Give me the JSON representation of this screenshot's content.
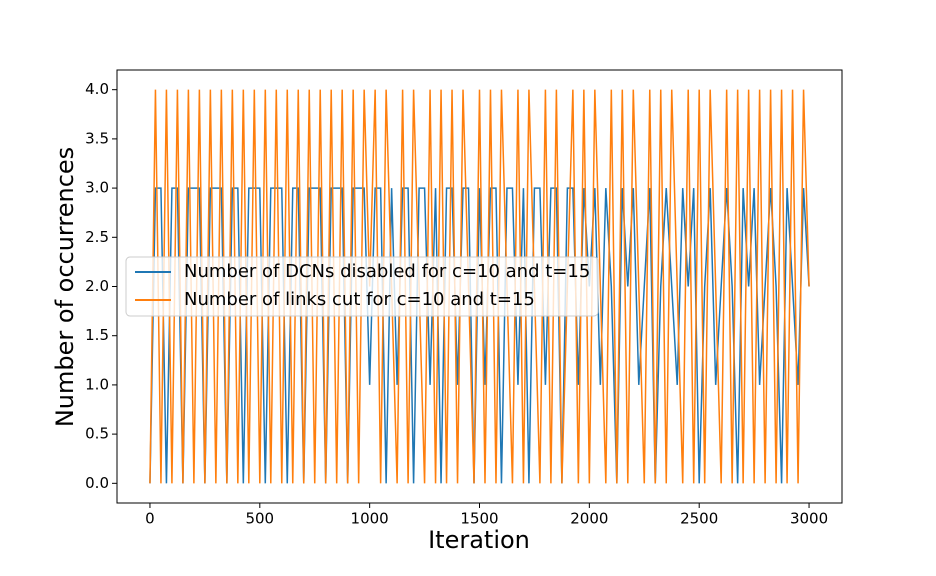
{
  "chart_data": {
    "type": "line",
    "x_label": "Iteration",
    "y_label": "Number of occurrences",
    "x": [
      0,
      25,
      50,
      75,
      100,
      125,
      150,
      175,
      200,
      225,
      250,
      275,
      300,
      325,
      350,
      375,
      400,
      425,
      450,
      475,
      500,
      525,
      550,
      575,
      600,
      625,
      650,
      675,
      700,
      725,
      750,
      775,
      800,
      825,
      850,
      875,
      900,
      925,
      950,
      975,
      1000,
      1025,
      1050,
      1075,
      1100,
      1125,
      1150,
      1175,
      1200,
      1225,
      1250,
      1275,
      1300,
      1325,
      1350,
      1375,
      1400,
      1425,
      1450,
      1475,
      1500,
      1525,
      1550,
      1575,
      1600,
      1625,
      1650,
      1675,
      1700,
      1725,
      1750,
      1775,
      1800,
      1825,
      1850,
      1875,
      1900,
      1925,
      1950,
      1975,
      2000,
      2025,
      2050,
      2075,
      2100,
      2125,
      2150,
      2175,
      2200,
      2225,
      2250,
      2275,
      2300,
      2325,
      2350,
      2375,
      2400,
      2425,
      2450,
      2475,
      2500,
      2525,
      2550,
      2575,
      2600,
      2625,
      2650,
      2675,
      2700,
      2725,
      2750,
      2775,
      2800,
      2825,
      2850,
      2875,
      2900,
      2925,
      2950,
      2975,
      3000
    ],
    "series": [
      {
        "name": "Number of DCNs disabled for c=10 and t=15",
        "color": "#1f77b4",
        "values": [
          0,
          3,
          3,
          0,
          3,
          3,
          0,
          3,
          3,
          3,
          0,
          3,
          3,
          3,
          0,
          3,
          3,
          0,
          3,
          3,
          3,
          0,
          3,
          3,
          3,
          0,
          3,
          3,
          0,
          3,
          3,
          3,
          0,
          3,
          3,
          3,
          0,
          3,
          3,
          3,
          1,
          3,
          3,
          0,
          3,
          1,
          3,
          3,
          0,
          3,
          3,
          1,
          3,
          0,
          3,
          3,
          1,
          3,
          3,
          0,
          3,
          1,
          3,
          3,
          0,
          3,
          3,
          1,
          3,
          0,
          3,
          3,
          1,
          3,
          3,
          0,
          3,
          3,
          1,
          3,
          2,
          3,
          1,
          3,
          2,
          0,
          3,
          2,
          3,
          1,
          2,
          3,
          0,
          2,
          3,
          2,
          1,
          3,
          2,
          3,
          0,
          2,
          3,
          1,
          2,
          3,
          2,
          0,
          3,
          2,
          3,
          1,
          2,
          3,
          2,
          0,
          3,
          2,
          1,
          3,
          2
        ]
      },
      {
        "name": "Number of links cut for c=10 and t=15",
        "color": "#ff7f0e",
        "values": [
          0,
          4,
          0,
          4,
          0,
          4,
          0,
          4,
          0,
          4,
          0,
          4,
          0,
          4,
          0,
          4,
          0,
          4,
          0,
          4,
          0,
          4,
          0,
          4,
          0,
          4,
          0,
          4,
          0,
          4,
          0,
          4,
          0,
          4,
          0,
          4,
          0,
          4,
          0,
          4,
          2,
          4,
          0,
          4,
          2,
          0,
          4,
          0,
          4,
          2,
          0,
          4,
          0,
          4,
          0,
          4,
          0,
          4,
          2,
          0,
          4,
          0,
          4,
          0,
          4,
          2,
          0,
          4,
          0,
          4,
          2,
          0,
          4,
          0,
          4,
          0,
          2,
          4,
          0,
          4,
          0,
          4,
          2,
          0,
          4,
          0,
          4,
          0,
          4,
          2,
          0,
          4,
          0,
          4,
          0,
          4,
          2,
          0,
          4,
          0,
          4,
          0,
          4,
          2,
          0,
          4,
          0,
          4,
          0,
          4,
          0,
          4,
          0,
          4,
          0,
          4,
          0,
          4,
          0,
          4,
          2
        ]
      }
    ],
    "xlim": [
      -150,
      3150
    ],
    "xticks": [
      0,
      500,
      1000,
      1500,
      2000,
      2500,
      3000
    ],
    "ylim": [
      -0.2,
      4.2
    ],
    "yticks": [
      {
        "value": 0,
        "label": "0.0"
      },
      {
        "value": 0.5,
        "label": "0.5"
      },
      {
        "value": 1,
        "label": "1.0"
      },
      {
        "value": 1.5,
        "label": "1.5"
      },
      {
        "value": 2,
        "label": "2.0"
      },
      {
        "value": 2.5,
        "label": "2.5"
      },
      {
        "value": 3,
        "label": "3.0"
      },
      {
        "value": 3.5,
        "label": "3.5"
      },
      {
        "value": 4,
        "label": "4.0"
      }
    ],
    "legend": "center left",
    "grid": false
  }
}
